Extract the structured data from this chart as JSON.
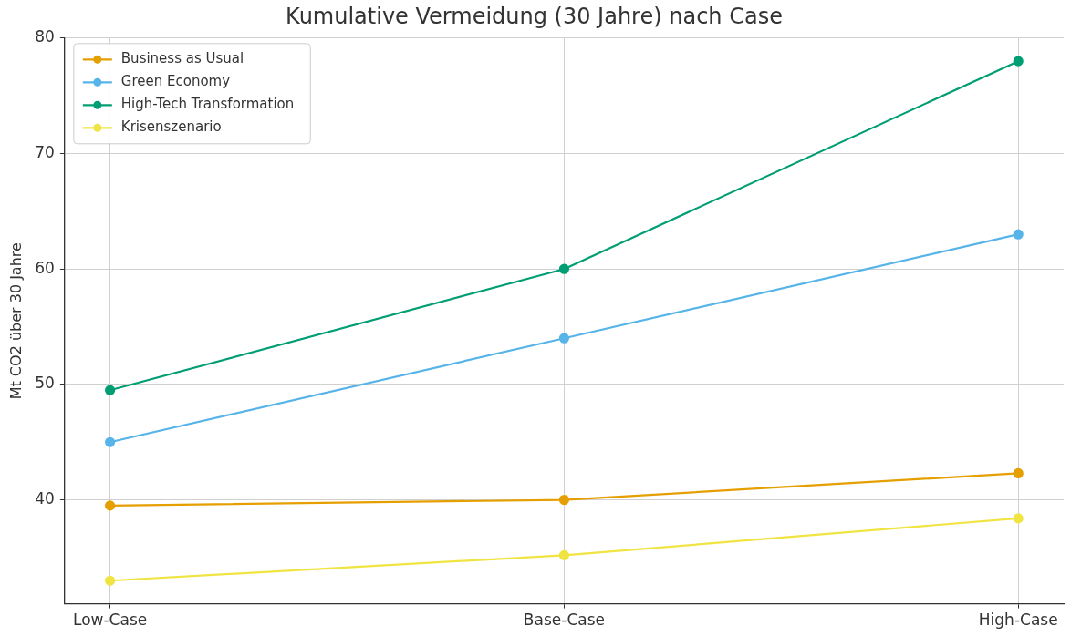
{
  "chart_data": {
    "type": "line",
    "title": "Kumulative Vermeidung (30 Jahre) nach Case",
    "ylabel": "Mt CO2 über 30 Jahre",
    "categories": [
      "Low-Case",
      "Base-Case",
      "High-Case"
    ],
    "series": [
      {
        "name": "Business as Usual",
        "color": "#e69f00",
        "values": [
          39.5,
          40,
          42.3
        ]
      },
      {
        "name": "Green Economy",
        "color": "#56b4e9",
        "values": [
          45,
          54,
          63
        ]
      },
      {
        "name": "High-Tech Transformation",
        "color": "#009e73",
        "values": [
          49.5,
          60,
          78
        ]
      },
      {
        "name": "Krisenszenario",
        "color": "#f0e442",
        "values": [
          33,
          35.2,
          38.4
        ]
      }
    ],
    "ylim": [
      31,
      80
    ],
    "yticks": [
      40,
      50,
      60,
      70,
      80
    ],
    "grid": true,
    "legend": "top left",
    "marker": "circle",
    "line_style": "solid"
  }
}
